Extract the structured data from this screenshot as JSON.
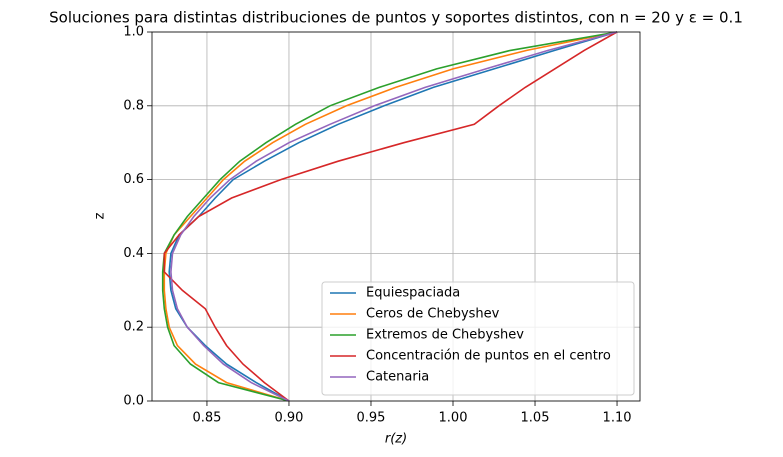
{
  "chart_data": {
    "type": "line",
    "title": "Soluciones para distintas distribuciones de puntos y soportes distintos, con n = 20 y ε = 0.1",
    "x_label": "r(z)",
    "y_label": "z",
    "xlim": [
      0.8165,
      1.114
    ],
    "ylim": [
      0,
      1
    ],
    "xticks": [
      {
        "value": 0.85,
        "label": "0.85"
      },
      {
        "value": 0.9,
        "label": "0.90"
      },
      0.95,
      {
        "value": 1.0,
        "label": "1.00"
      },
      1.05,
      {
        "value": 1.1,
        "label": "1.10"
      }
    ],
    "yticks": [
      {
        "value": 0,
        "label": "0.0"
      },
      {
        "value": 0.2,
        "label": "0.2"
      },
      {
        "value": 0.4,
        "label": "0.4"
      },
      {
        "value": 0.6,
        "label": "0.6"
      },
      {
        "value": 0.8,
        "label": "0.8"
      },
      {
        "value": 1.0,
        "label": "1.0"
      }
    ],
    "grid": true,
    "legend": "lower right",
    "series": [
      {
        "name": "Equiespaciada",
        "color": "#1f77b4",
        "x": [
          0.9,
          0.88,
          0.862,
          0.849,
          0.838,
          0.831,
          0.828,
          0.827,
          0.828,
          0.833,
          0.845,
          0.855,
          0.866,
          0.885,
          0.906,
          0.93,
          0.958,
          0.988,
          1.025,
          1.062,
          1.1
        ],
        "values": [
          0,
          0.05,
          0.1,
          0.15,
          0.2,
          0.25,
          0.3,
          0.35,
          0.4,
          0.45,
          0.5,
          0.55,
          0.6,
          0.65,
          0.7,
          0.75,
          0.8,
          0.85,
          0.9,
          0.95,
          1.0
        ]
      },
      {
        "name": "Ceros de Chebyshev",
        "color": "#ff7f0e",
        "x": [
          0.9,
          0.862,
          0.843,
          0.832,
          0.827,
          0.825,
          0.824,
          0.824,
          0.825,
          0.83,
          0.84,
          0.85,
          0.86,
          0.873,
          0.89,
          0.91,
          0.935,
          0.965,
          1.0,
          1.045,
          1.1
        ],
        "values": [
          0,
          0.05,
          0.1,
          0.15,
          0.2,
          0.25,
          0.3,
          0.35,
          0.4,
          0.45,
          0.5,
          0.55,
          0.6,
          0.65,
          0.7,
          0.75,
          0.8,
          0.85,
          0.9,
          0.95,
          1.0
        ]
      },
      {
        "name": "Extremos de Chebyshev",
        "color": "#2ca02c",
        "x": [
          0.9,
          0.857,
          0.84,
          0.83,
          0.826,
          0.824,
          0.823,
          0.823,
          0.824,
          0.83,
          0.838,
          0.848,
          0.858,
          0.87,
          0.886,
          0.904,
          0.925,
          0.955,
          0.99,
          1.035,
          1.1
        ],
        "values": [
          0,
          0.05,
          0.1,
          0.15,
          0.2,
          0.25,
          0.3,
          0.35,
          0.4,
          0.45,
          0.5,
          0.55,
          0.6,
          0.65,
          0.7,
          0.75,
          0.8,
          0.85,
          0.9,
          0.95,
          1.0
        ]
      },
      {
        "name": "Concentración de puntos en el centro",
        "color": "#d62728",
        "x": [
          0.9,
          0.885,
          0.872,
          0.862,
          0.855,
          0.849,
          0.835,
          0.824,
          0.824,
          0.833,
          0.845,
          0.865,
          0.895,
          0.93,
          0.97,
          1.013,
          1.028,
          1.044,
          1.062,
          1.08,
          1.1
        ],
        "values": [
          0,
          0.05,
          0.1,
          0.15,
          0.2,
          0.25,
          0.3,
          0.35,
          0.4,
          0.45,
          0.5,
          0.55,
          0.6,
          0.65,
          0.7,
          0.75,
          0.8,
          0.85,
          0.9,
          0.95,
          1.0
        ]
      },
      {
        "name": "Catenaria",
        "color": "#9467bd",
        "x": [
          0.9,
          0.877,
          0.86,
          0.848,
          0.838,
          0.832,
          0.829,
          0.828,
          0.829,
          0.834,
          0.842,
          0.852,
          0.864,
          0.88,
          0.9,
          0.925,
          0.952,
          0.983,
          1.02,
          1.058,
          1.1
        ],
        "values": [
          0,
          0.05,
          0.1,
          0.15,
          0.2,
          0.25,
          0.3,
          0.35,
          0.4,
          0.45,
          0.5,
          0.55,
          0.6,
          0.65,
          0.7,
          0.75,
          0.8,
          0.85,
          0.9,
          0.95,
          1.0
        ]
      }
    ]
  }
}
